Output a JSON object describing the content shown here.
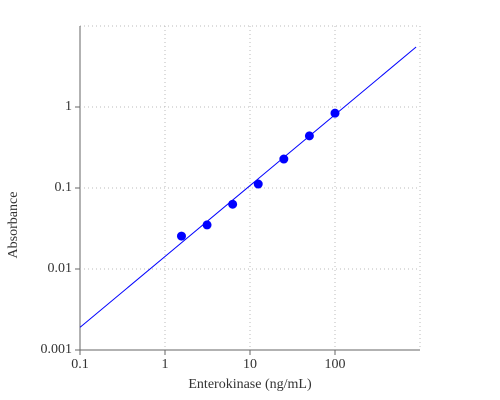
{
  "chart_data": {
    "type": "scatter",
    "x_label": "Enterokinase (ng/mL)",
    "y_label": "Absorbance",
    "x": [
      1.5625,
      3.125,
      6.25,
      12.5,
      25,
      50,
      100
    ],
    "values": [
      0.0255,
      0.035,
      0.063,
      0.112,
      0.228,
      0.44,
      0.84
    ],
    "color": "#0000ff",
    "fit_line": {
      "x": [
        0.1,
        900
      ],
      "values": [
        0.0019,
        5.5
      ],
      "color": "#0000ff"
    },
    "xscale": "log",
    "yscale": "log",
    "xlim": [
      0.1,
      1000
    ],
    "ylim": [
      0.001,
      10
    ],
    "xticks": [
      0.1,
      1,
      10,
      100
    ],
    "yticks": [
      0.001,
      0.01,
      0.1,
      1
    ],
    "grid": true
  }
}
